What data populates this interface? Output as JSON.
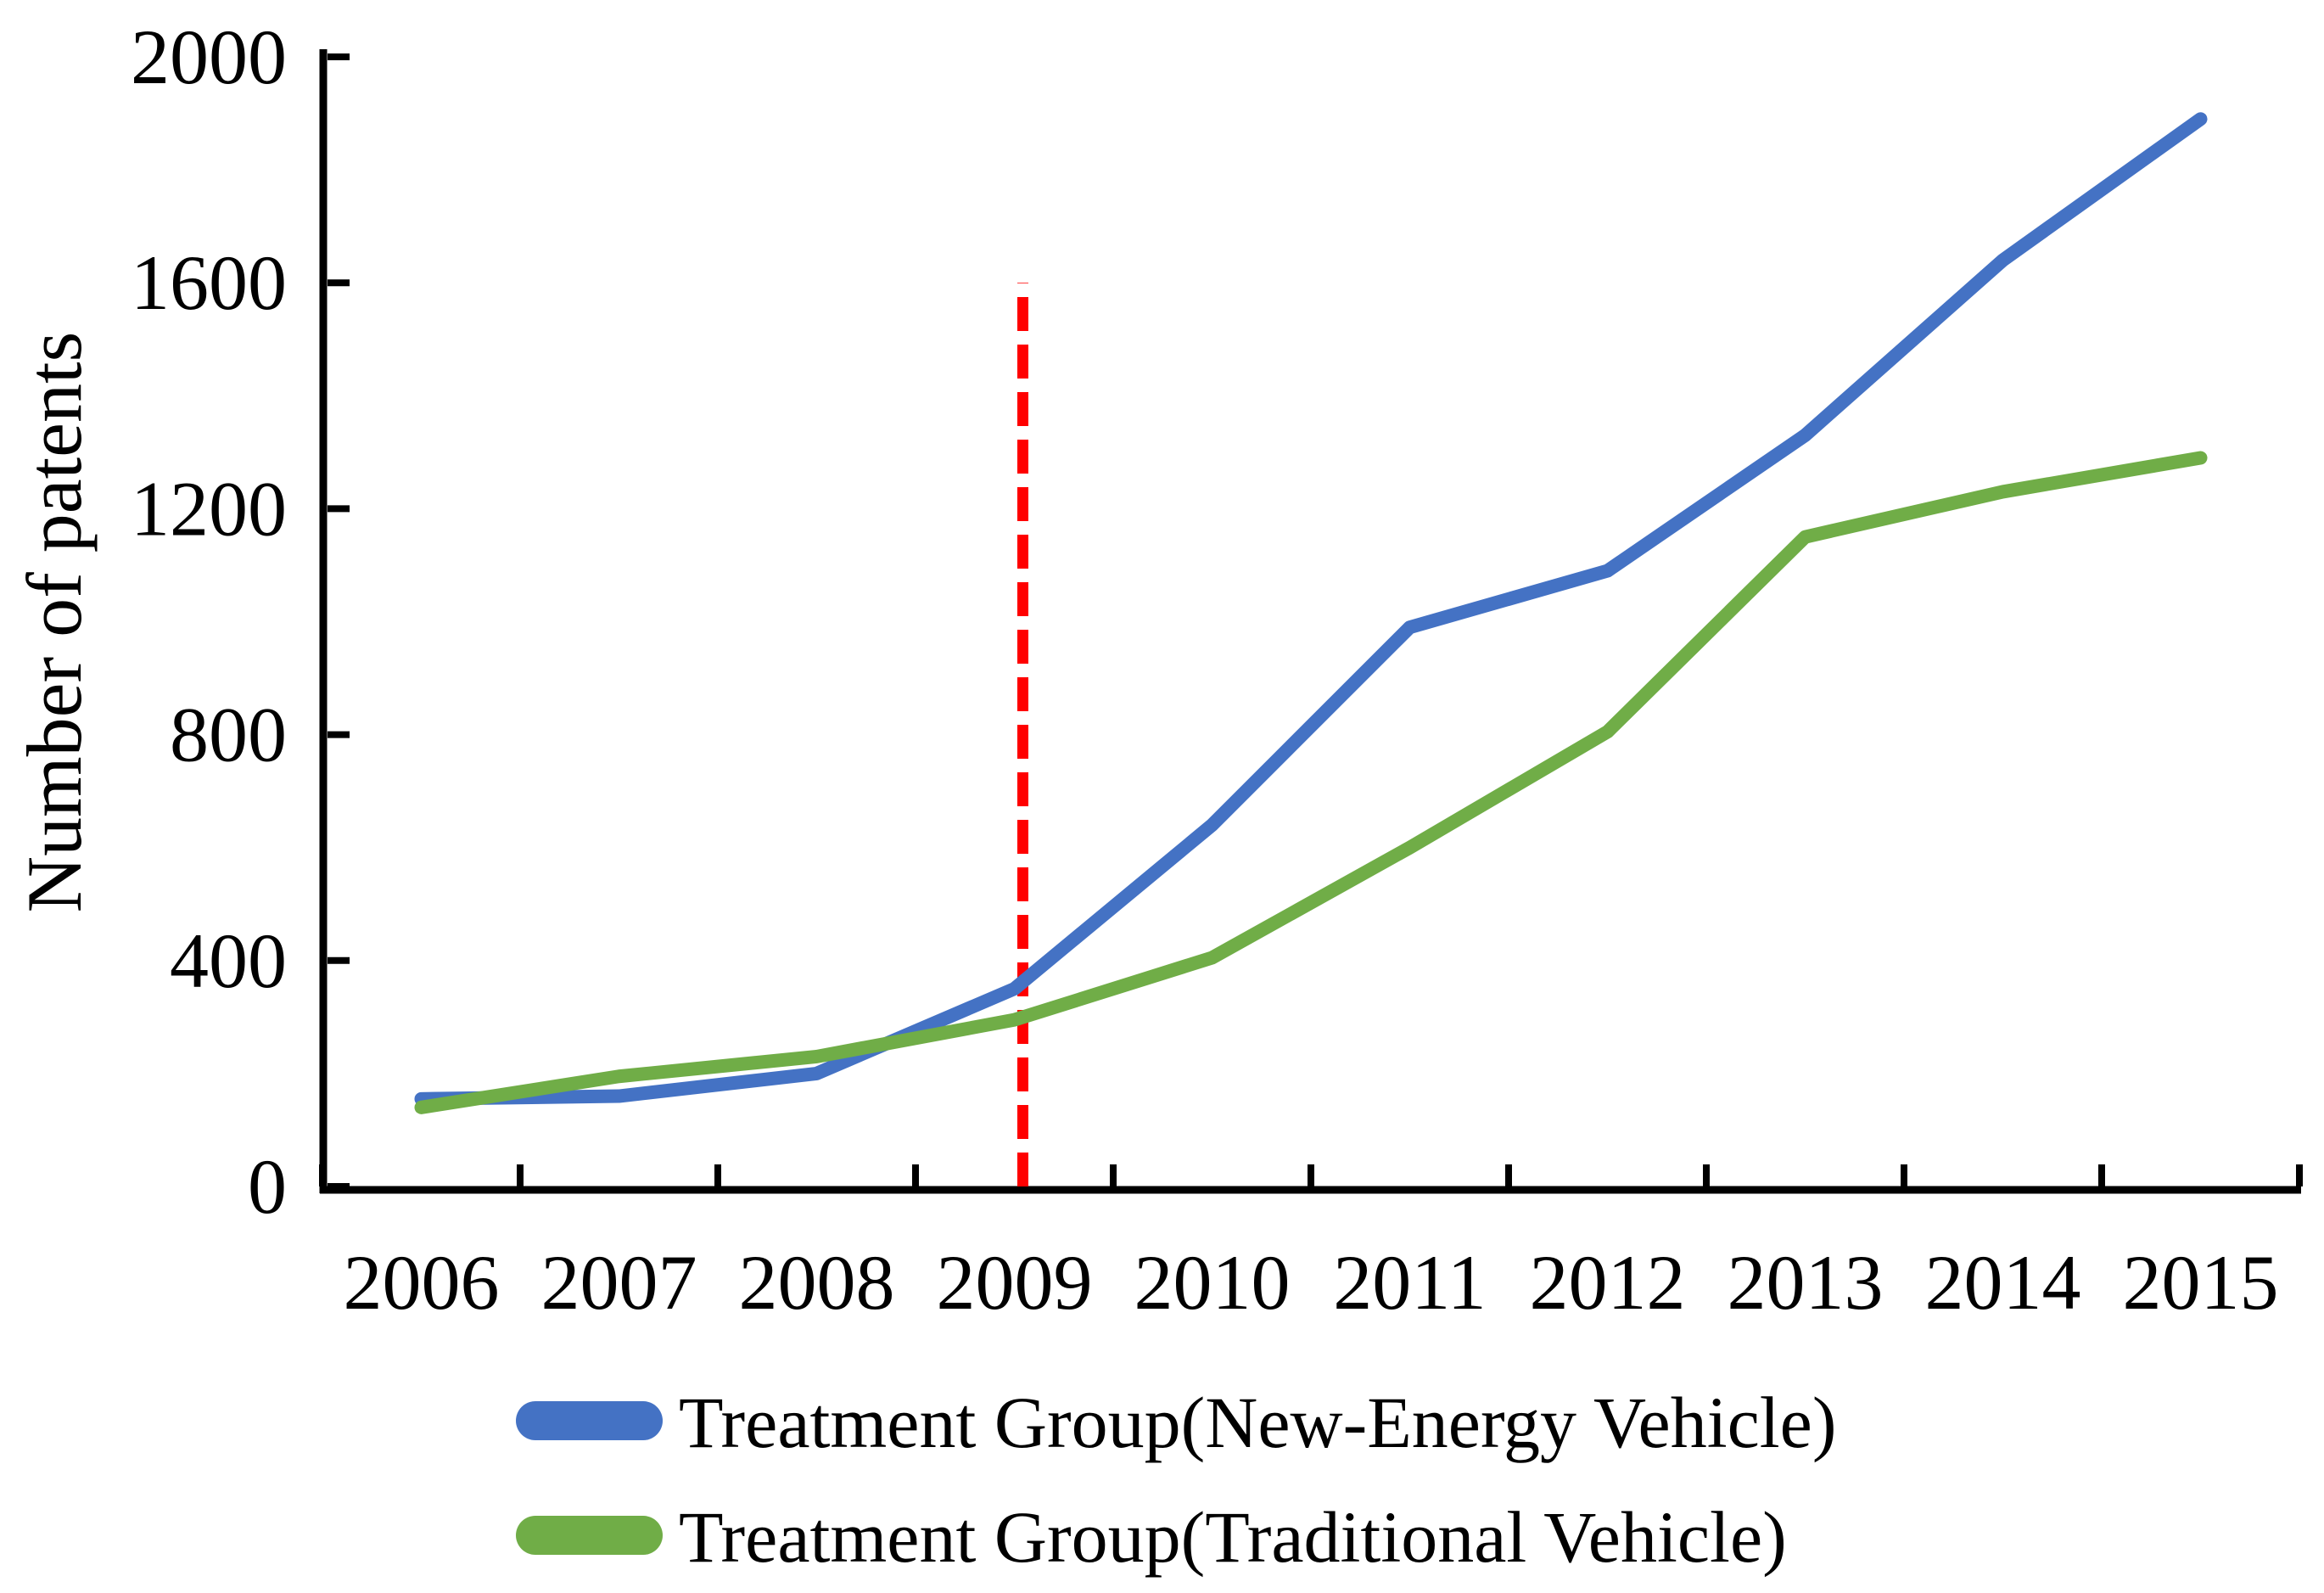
{
  "page": {
    "background": "#FFFFFF",
    "axis_color": "#000000"
  },
  "axes": {
    "y_title": "Number of patents",
    "y_tick_labels": [
      "0",
      "400",
      "800",
      "1200",
      "1600",
      "2000"
    ],
    "x_tick_labels": [
      "2006",
      "2007",
      "2008",
      "2009",
      "2010",
      "2011",
      "2012",
      "2013",
      "2014",
      "2015"
    ]
  },
  "chart_data": {
    "type": "line",
    "title": "",
    "xlabel": "",
    "ylabel": "Number of patents",
    "x": [
      2006,
      2007,
      2008,
      2009,
      2010,
      2011,
      2012,
      2013,
      2014,
      2015
    ],
    "series": [
      {
        "name": "Treatment Group(New-Energy Vehicle)",
        "color": "#4472C4",
        "values": [
          155,
          160,
          200,
          350,
          640,
          990,
          1090,
          1330,
          1640,
          1890
        ]
      },
      {
        "name": "Treatment Group(Traditional Vehicle)",
        "color": "#70AD47",
        "values": [
          140,
          195,
          230,
          295,
          405,
          600,
          805,
          1150,
          1230,
          1290
        ]
      }
    ],
    "ylim": [
      0,
      2000
    ],
    "yticks": [
      0,
      400,
      800,
      1200,
      1600,
      2000
    ],
    "grid": false,
    "legend_position": "bottom-left",
    "reference_line": {
      "x": 2009,
      "from": 0,
      "to": 1600,
      "color": "#FF0000",
      "style": "dashed"
    }
  }
}
